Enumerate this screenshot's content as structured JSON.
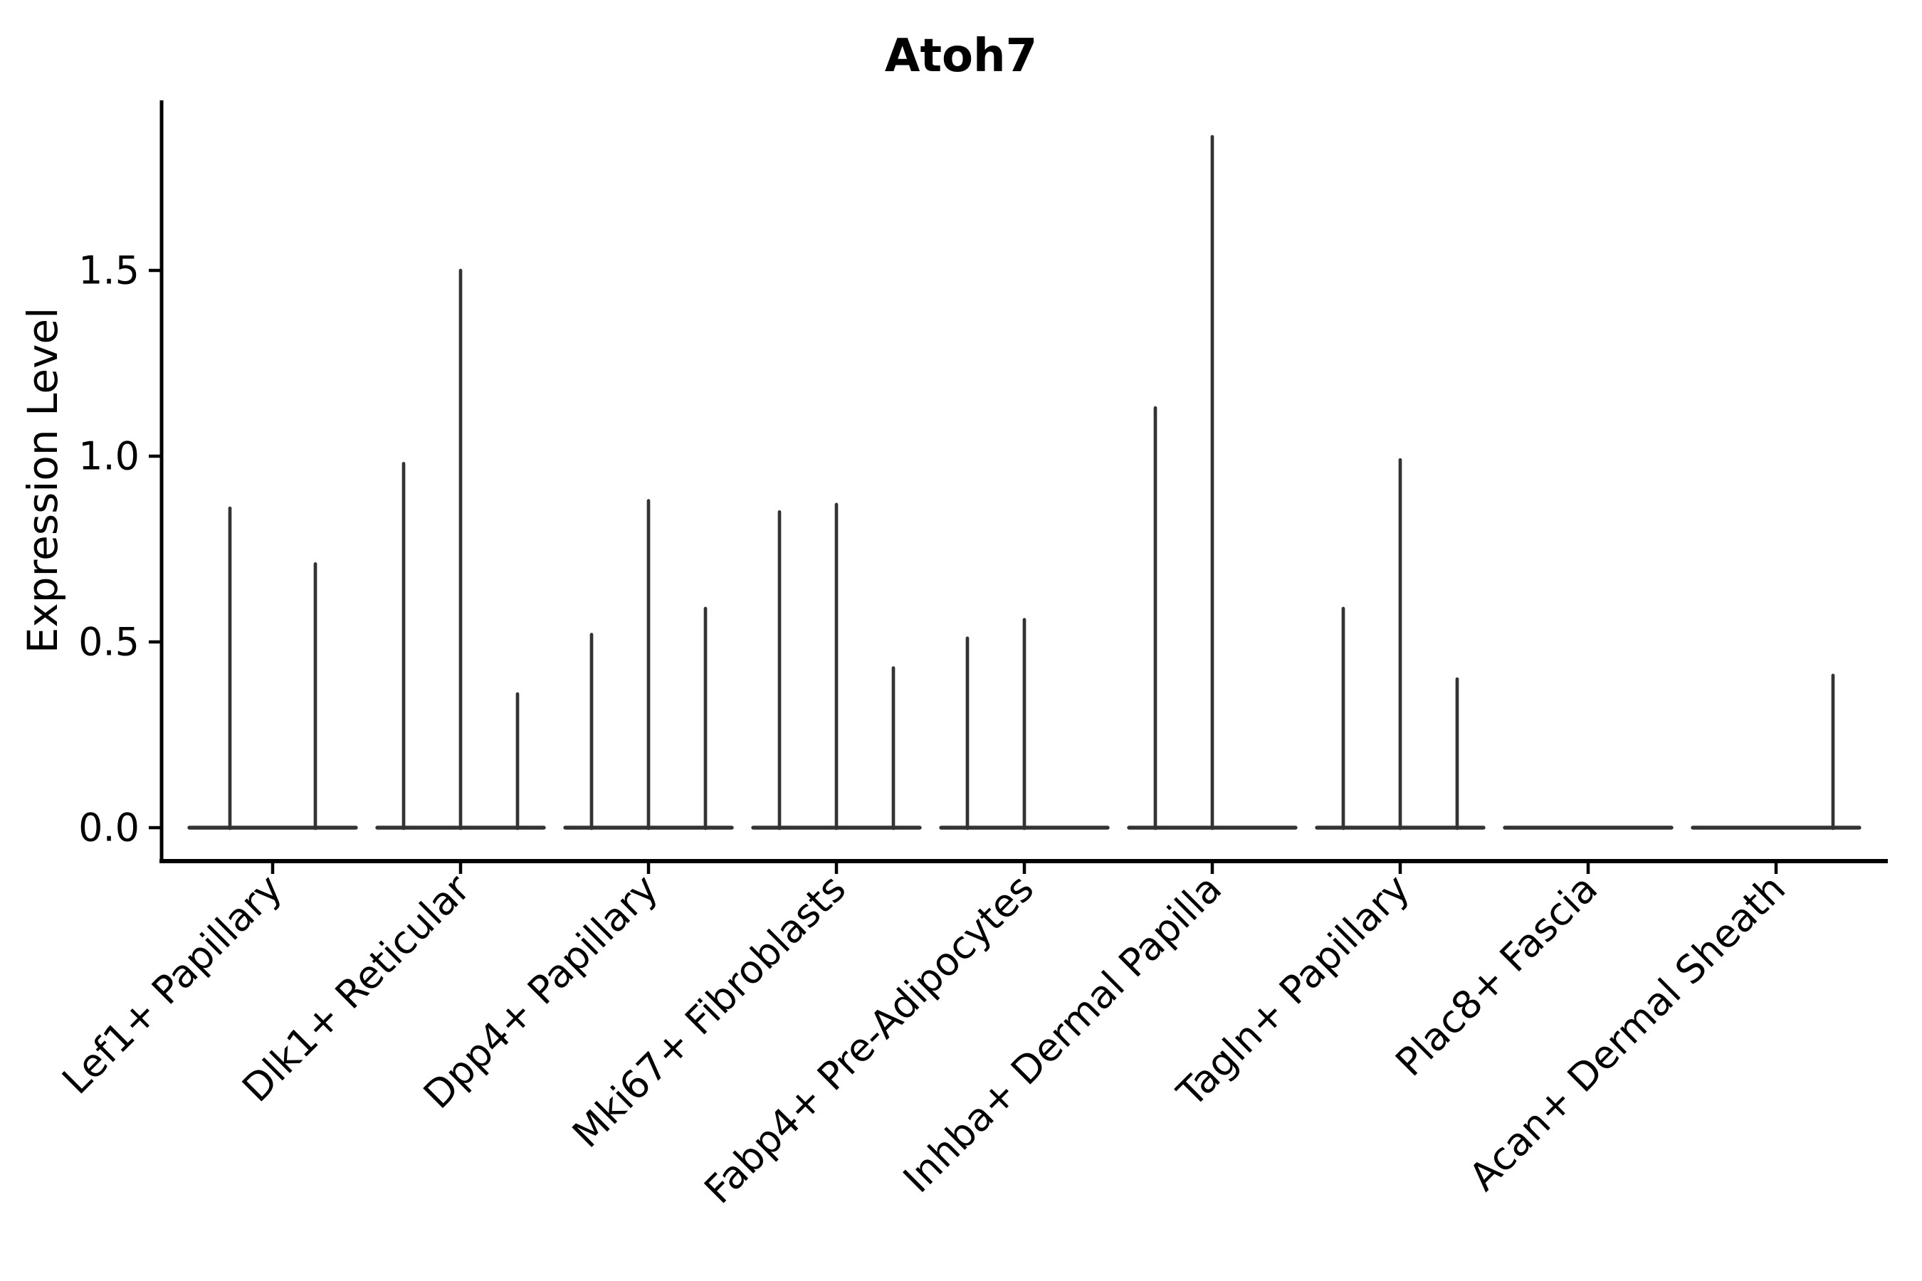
{
  "chart_data": {
    "type": "violin",
    "title": "Atoh7",
    "ylabel": "Expression Level",
    "xlabel": "",
    "ylim": [
      -0.09,
      1.96
    ],
    "yticks": [
      0.0,
      0.5,
      1.0,
      1.5
    ],
    "ytick_labels": [
      "0.0",
      "0.5",
      "1.0",
      "1.5"
    ],
    "grid": false,
    "legend": "none",
    "x_tick_rotation_deg": 45,
    "categories": [
      "Lef1+ Papillary",
      "Dlk1+ Reticular",
      "Dpp4+ Papillary",
      "Mki67+ Fibroblasts",
      "Fabp4+ Pre-Adipocytes",
      "Inhba+ Dermal Papilla",
      "Tagln+ Papillary",
      "Plac8+ Fascia",
      "Acan+ Dermal Sheath"
    ],
    "groups": [
      {
        "category": "Lef1+ Papillary",
        "violin_maxima": [
          0.86,
          0.71
        ]
      },
      {
        "category": "Dlk1+ Reticular",
        "violin_maxima": [
          0.98,
          1.5,
          0.36
        ]
      },
      {
        "category": "Dpp4+ Papillary",
        "violin_maxima": [
          0.52,
          0.88,
          0.59
        ]
      },
      {
        "category": "Mki67+ Fibroblasts",
        "violin_maxima": [
          0.85,
          0.87,
          0.43
        ]
      },
      {
        "category": "Fabp4+ Pre-Adipocytes",
        "violin_maxima": [
          0.51,
          0.56,
          0
        ]
      },
      {
        "category": "Inhba+ Dermal Papilla",
        "violin_maxima": [
          1.13,
          1.86,
          0
        ]
      },
      {
        "category": "Tagln+ Papillary",
        "violin_maxima": [
          0.59,
          0.99,
          0.4
        ]
      },
      {
        "category": "Plac8+ Fascia",
        "violin_maxima": [
          0,
          0,
          0
        ]
      },
      {
        "category": "Acan+ Dermal Sheath",
        "violin_maxima": [
          0,
          0,
          0.41
        ]
      }
    ],
    "colors": {
      "violin_ink": "#333333",
      "axis_ink": "#000000",
      "text_ink": "#000000",
      "background": "#ffffff"
    }
  }
}
